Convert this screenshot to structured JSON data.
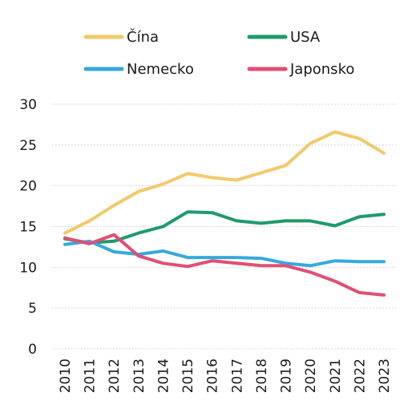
{
  "chart_data": {
    "type": "line",
    "x": [
      "2010",
      "2011",
      "2012",
      "2013",
      "2014",
      "2015",
      "2016",
      "2017",
      "2018",
      "2019",
      "2020",
      "2021",
      "2022",
      "2023"
    ],
    "yticks": [
      "0",
      "5",
      "10",
      "15",
      "20",
      "25",
      "30"
    ],
    "ylim": [
      0,
      30
    ],
    "grid": "horizontal-dotted",
    "legend_position": "top",
    "series": [
      {
        "name": "Čína",
        "color": "#f2c96b",
        "values": [
          14.2,
          15.7,
          17.6,
          19.3,
          20.2,
          21.5,
          21.0,
          20.7,
          21.6,
          22.5,
          25.2,
          26.6,
          25.8,
          24.0
        ]
      },
      {
        "name": "USA",
        "color": "#1f9a6b",
        "values": [
          13.5,
          13.0,
          13.2,
          14.2,
          15.0,
          16.8,
          16.7,
          15.7,
          15.4,
          15.7,
          15.7,
          15.1,
          16.2,
          16.5
        ]
      },
      {
        "name": "Nemecko",
        "color": "#35a9dd",
        "values": [
          12.8,
          13.2,
          11.9,
          11.6,
          12.0,
          11.2,
          11.2,
          11.2,
          11.1,
          10.5,
          10.2,
          10.8,
          10.7,
          10.7
        ]
      },
      {
        "name": "Japonsko",
        "color": "#e04f74",
        "values": [
          13.6,
          12.9,
          14.0,
          11.4,
          10.5,
          10.1,
          10.8,
          10.5,
          10.2,
          10.2,
          9.4,
          8.3,
          6.9,
          6.6
        ]
      }
    ]
  }
}
